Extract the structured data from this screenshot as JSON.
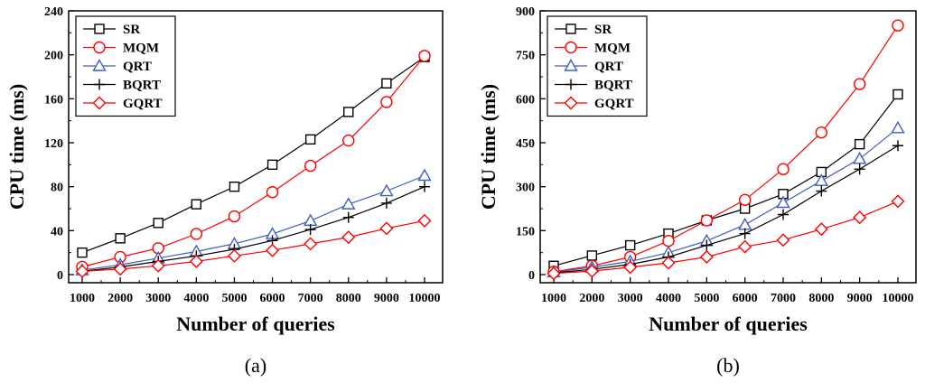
{
  "chart_data": [
    {
      "type": "line",
      "caption": "(a)",
      "xlabel": "Number of queries",
      "ylabel": "CPU time (ms)",
      "x": [
        1000,
        2000,
        3000,
        4000,
        5000,
        6000,
        7000,
        8000,
        9000,
        10000
      ],
      "x_tick_labels": [
        "1000",
        "2000",
        "3000",
        "4000",
        "5000",
        "6000",
        "7000",
        "8000",
        "9000",
        "10000"
      ],
      "ylim": [
        0,
        240
      ],
      "y_ticks": [
        0,
        40,
        80,
        120,
        160,
        200,
        240
      ],
      "y_tick_labels": [
        "0",
        "40",
        "80",
        "120",
        "160",
        "200",
        "240"
      ],
      "legend_position": "top-left",
      "series": [
        {
          "name": "SR",
          "marker": "square",
          "color": "#000000",
          "values": [
            20,
            33,
            47,
            64,
            80,
            100,
            123,
            148,
            174,
            198
          ]
        },
        {
          "name": "MQM",
          "marker": "circle",
          "color": "#ff0000",
          "values": [
            7,
            16,
            24,
            37,
            53,
            75,
            99,
            122,
            157,
            199
          ]
        },
        {
          "name": "QRT",
          "marker": "triangle",
          "color": "#3f5fbf",
          "values": [
            4,
            9,
            15,
            21,
            28,
            37,
            49,
            64,
            76,
            90
          ]
        },
        {
          "name": "BQRT",
          "marker": "plus",
          "color": "#000000",
          "values": [
            3,
            7,
            12,
            17,
            23,
            31,
            41,
            52,
            65,
            80
          ]
        },
        {
          "name": "GQRT",
          "marker": "diamond",
          "color": "#ff0000",
          "values": [
            3,
            5,
            8,
            12,
            17,
            22,
            28,
            34,
            42,
            49
          ]
        }
      ]
    },
    {
      "type": "line",
      "caption": "(b)",
      "xlabel": "Number of queries",
      "ylabel": "CPU time (ms)",
      "x": [
        1000,
        2000,
        3000,
        4000,
        5000,
        6000,
        7000,
        8000,
        9000,
        10000
      ],
      "x_tick_labels": [
        "1000",
        "2000",
        "3000",
        "4000",
        "5000",
        "6000",
        "7000",
        "8000",
        "9000",
        "10000"
      ],
      "ylim": [
        0,
        900
      ],
      "y_ticks": [
        0,
        150,
        300,
        450,
        600,
        750,
        900
      ],
      "y_tick_labels": [
        "0",
        "150",
        "300",
        "450",
        "600",
        "750",
        "900"
      ],
      "legend_position": "top-left",
      "series": [
        {
          "name": "SR",
          "marker": "square",
          "color": "#000000",
          "values": [
            30,
            65,
            100,
            140,
            185,
            225,
            275,
            350,
            445,
            615
          ]
        },
        {
          "name": "MQM",
          "marker": "circle",
          "color": "#ff0000",
          "values": [
            10,
            30,
            60,
            115,
            185,
            255,
            360,
            485,
            650,
            850
          ]
        },
        {
          "name": "QRT",
          "marker": "triangle",
          "color": "#3f5fbf",
          "values": [
            8,
            25,
            45,
            75,
            115,
            170,
            245,
            320,
            395,
            500
          ]
        },
        {
          "name": "BQRT",
          "marker": "plus",
          "color": "#000000",
          "values": [
            6,
            18,
            35,
            60,
            100,
            140,
            205,
            285,
            360,
            440
          ]
        },
        {
          "name": "GQRT",
          "marker": "diamond",
          "color": "#ff0000",
          "values": [
            4,
            12,
            25,
            40,
            60,
            95,
            118,
            155,
            195,
            250
          ]
        }
      ]
    }
  ]
}
